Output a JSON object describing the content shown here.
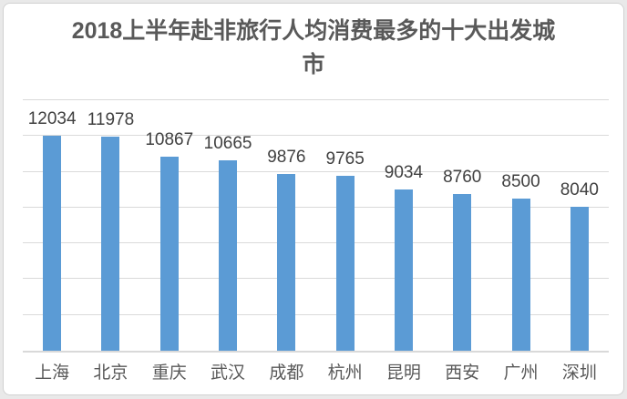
{
  "chart_data": {
    "type": "bar",
    "title": "2018上半年赴非旅行人均消费最多的十大出发城市",
    "categories": [
      "上海",
      "北京",
      "重庆",
      "武汉",
      "成都",
      "杭州",
      "昆明",
      "西安",
      "广州",
      "深圳"
    ],
    "values": [
      12034,
      11978,
      10867,
      10665,
      9876,
      9765,
      9034,
      8760,
      8500,
      8040
    ],
    "xlabel": "",
    "ylabel": "",
    "ylim": [
      0,
      14000
    ],
    "grid_step": 2000,
    "grid": true,
    "legend": false,
    "data_labels": true,
    "y_tick_labels_visible": false
  },
  "style": {
    "bar_color": "#5b9bd5",
    "gridline_color": "#dadada",
    "axis_line_color": "#d9d9d9",
    "title_color": "#595959",
    "value_label_color": "#404040",
    "category_label_color": "#595959",
    "frame_border_color": "#d2d2d2",
    "chart_background": "#ffffff",
    "page_background": "#e9e9e9"
  }
}
